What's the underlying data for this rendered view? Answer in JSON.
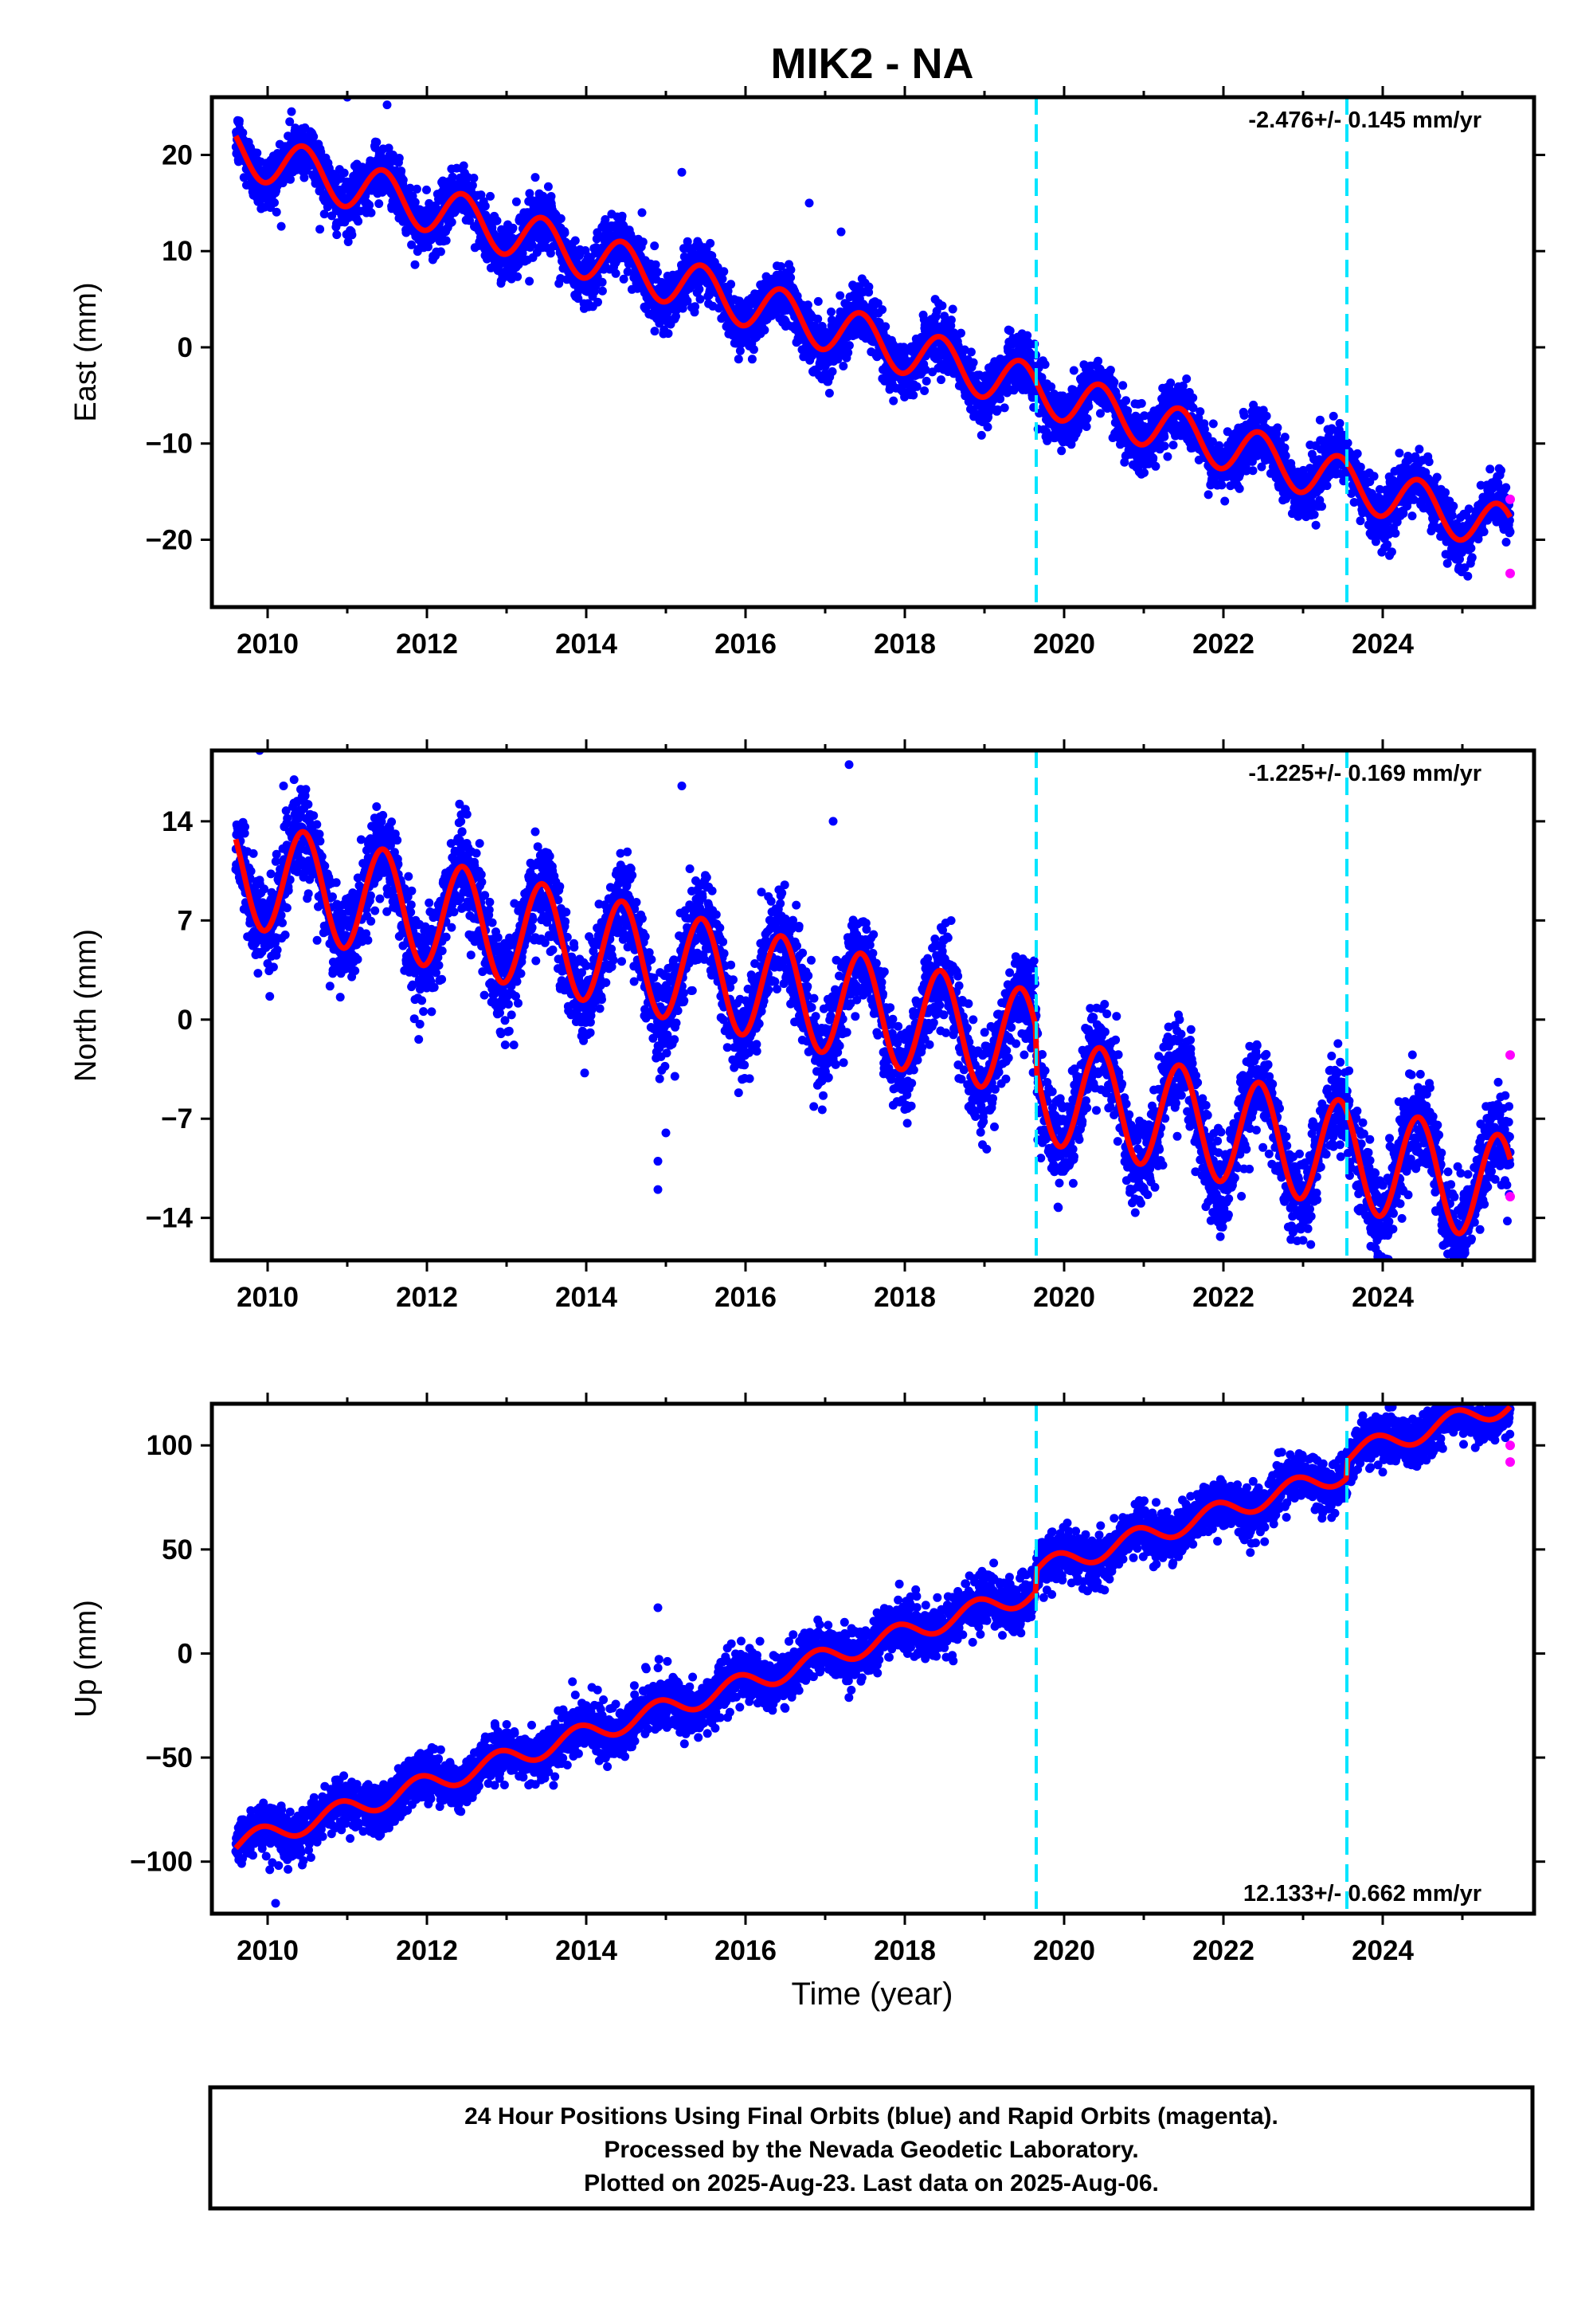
{
  "title": "MIK2 - NA",
  "xlabel": "Time (year)",
  "footer": [
    "24 Hour Positions Using Final Orbits (blue) and Rapid Orbits (magenta).",
    "Processed by the Nevada Geodetic Laboratory.",
    "Plotted on 2025-Aug-23. Last data on 2025-Aug-06."
  ],
  "colors": {
    "final_orbits": "#0000ff",
    "rapid_orbits": "#ff00ff",
    "model_fit": "#ff0000",
    "event_lines": "#00e5ff",
    "frame": "#000000"
  },
  "chart_data": [
    {
      "type": "scatter",
      "ylabel": "East (mm)",
      "annotation": "-2.476+/- 0.145 mm/yr",
      "annotation_position": "top-right",
      "xlim": [
        2009.3,
        2025.9
      ],
      "ylim": [
        -27,
        26
      ],
      "xticks": [
        2010,
        2012,
        2014,
        2016,
        2018,
        2020,
        2022,
        2024
      ],
      "yticks": [
        -20,
        -10,
        0,
        10,
        20
      ],
      "ytick_labels": [
        "−20",
        "−10",
        "0",
        "10",
        "20"
      ],
      "event_lines_x": [
        2019.65,
        2023.55
      ],
      "data_range_x": [
        2009.6,
        2025.6
      ],
      "model": {
        "rate_mm_per_yr": -2.476,
        "value_at_start": 20.5,
        "annual_amplitude": 2.5,
        "annual_phase_peak": 0.45,
        "offsets": []
      },
      "scatter_noise_mm": 1.5,
      "outliers": [
        [
          2010.3,
          24.5
        ],
        [
          2011.0,
          26.0
        ],
        [
          2011.5,
          25.2
        ],
        [
          2014.7,
          14.0
        ],
        [
          2015.2,
          18.2
        ],
        [
          2016.8,
          15.0
        ],
        [
          2017.2,
          12.0
        ]
      ],
      "rapid_points": [
        [
          2025.6,
          -15.8
        ],
        [
          2025.6,
          -23.5
        ]
      ]
    },
    {
      "type": "scatter",
      "ylabel": "North (mm)",
      "annotation": "-1.225+/- 0.169 mm/yr",
      "annotation_position": "top-right",
      "xlim": [
        2009.3,
        2025.9
      ],
      "ylim": [
        -17,
        19
      ],
      "xticks": [
        2010,
        2012,
        2014,
        2016,
        2018,
        2020,
        2022,
        2024
      ],
      "yticks": [
        -14,
        -7,
        0,
        7,
        14
      ],
      "ytick_labels": [
        "−14",
        "−7",
        "0",
        "7",
        "14"
      ],
      "event_lines_x": [
        2019.65,
        2023.55
      ],
      "data_range_x": [
        2009.6,
        2025.6
      ],
      "model": {
        "rate_mm_per_yr": -1.225,
        "value_at_start": 10.5,
        "annual_amplitude": 3.8,
        "annual_phase_peak": 0.45,
        "offsets": [
          [
            2019.65,
            -3.0
          ]
        ]
      },
      "scatter_noise_mm": 1.6,
      "outliers": [
        [
          2009.9,
          19.0
        ],
        [
          2010.2,
          16.5
        ],
        [
          2014.9,
          -10.0
        ],
        [
          2014.9,
          -12.0
        ],
        [
          2015.0,
          -8.0
        ],
        [
          2015.2,
          16.5
        ],
        [
          2017.1,
          14.0
        ],
        [
          2017.3,
          18.0
        ],
        [
          2016.2,
          9.0
        ]
      ],
      "rapid_points": [
        [
          2025.6,
          -2.5
        ],
        [
          2025.6,
          -12.5
        ]
      ]
    },
    {
      "type": "scatter",
      "ylabel": "Up (mm)",
      "annotation": "12.133+/- 0.662 mm/yr",
      "annotation_position": "bottom-right",
      "xlim": [
        2009.3,
        2025.9
      ],
      "ylim": [
        -125,
        120
      ],
      "xticks": [
        2010,
        2012,
        2014,
        2016,
        2018,
        2020,
        2022,
        2024
      ],
      "yticks": [
        -100,
        -50,
        0,
        50,
        100
      ],
      "ytick_labels": [
        "−100",
        "−50",
        "0",
        "50",
        "100"
      ],
      "event_lines_x": [
        2019.65,
        2023.55
      ],
      "data_range_x": [
        2009.6,
        2025.6
      ],
      "model": {
        "rate_mm_per_yr": 12.133,
        "value_at_start": -92.0,
        "annual_amplitude": 5.0,
        "annual_phase_peak": 0.9,
        "offsets": [
          [
            2019.65,
            10.0
          ],
          [
            2023.55,
            8.0
          ]
        ]
      },
      "scatter_noise_mm": 6.0,
      "outliers": [
        [
          2014.9,
          22.0
        ],
        [
          2010.1,
          -120.0
        ],
        [
          2017.2,
          5.0
        ]
      ],
      "rapid_points": [
        [
          2025.6,
          100.0
        ],
        [
          2025.6,
          92.0
        ]
      ]
    }
  ]
}
